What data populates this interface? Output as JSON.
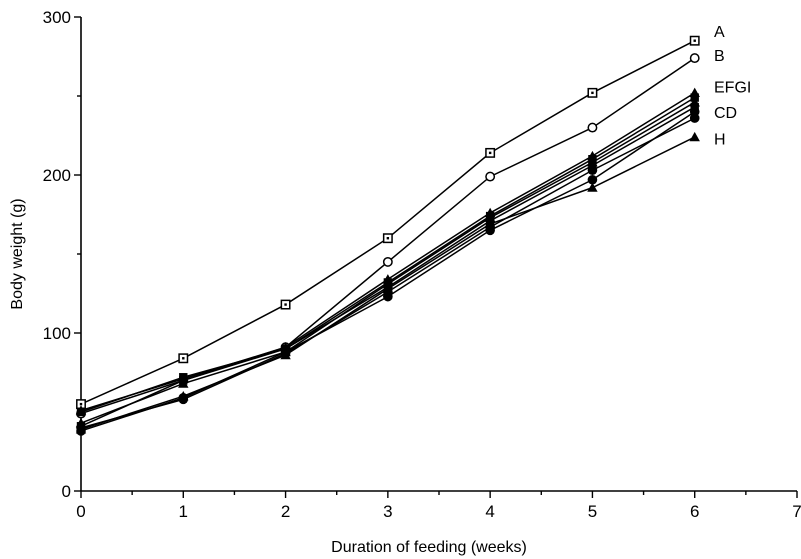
{
  "chart_data": {
    "type": "line",
    "xlabel": "Duration of feeding (weeks)",
    "ylabel": "Body weight (g)",
    "xlim": [
      0,
      7
    ],
    "ylim": [
      0,
      300
    ],
    "x_ticks": [
      "0",
      "1",
      "2",
      "3",
      "4",
      "5",
      "6",
      "7"
    ],
    "y_ticks": [
      "0",
      "100",
      "200",
      "300"
    ],
    "x": [
      0,
      1,
      2,
      3,
      4,
      5,
      6
    ],
    "grid": false,
    "series": [
      {
        "name": "A",
        "marker": "square-dot",
        "values": [
          55,
          84,
          118,
          160,
          214,
          252,
          285
        ]
      },
      {
        "name": "B",
        "marker": "open-circle",
        "values": [
          49,
          70,
          91,
          145,
          199,
          230,
          274
        ]
      },
      {
        "name": "C",
        "marker": "filled-circle",
        "values": [
          38,
          59,
          88,
          123,
          165,
          197,
          240
        ]
      },
      {
        "name": "D",
        "marker": "filled-circle",
        "values": [
          40,
          58,
          87,
          126,
          167,
          203,
          236
        ]
      },
      {
        "name": "E",
        "marker": "filled-triangle",
        "values": [
          51,
          71,
          91,
          134,
          176,
          212,
          252
        ]
      },
      {
        "name": "F",
        "marker": "filled-square",
        "values": [
          41,
          70,
          90,
          132,
          174,
          210,
          249
        ]
      },
      {
        "name": "G",
        "marker": "filled-triangle",
        "values": [
          43,
          68,
          88,
          131,
          173,
          208,
          246
        ]
      },
      {
        "name": "H",
        "marker": "filled-triangle",
        "values": [
          39,
          60,
          86,
          128,
          169,
          192,
          224
        ]
      },
      {
        "name": "I",
        "marker": "filled-square",
        "values": [
          50,
          72,
          90,
          129,
          171,
          206,
          243
        ]
      }
    ],
    "group_labels": [
      {
        "text": "A",
        "y": 291
      },
      {
        "text": "B",
        "y": 276
      },
      {
        "text": "EFGI",
        "y": 256
      },
      {
        "text": "CD",
        "y": 240
      },
      {
        "text": "H",
        "y": 223
      }
    ]
  }
}
